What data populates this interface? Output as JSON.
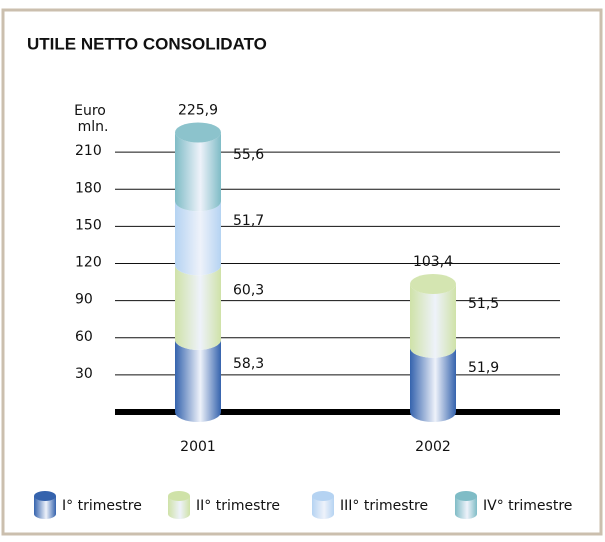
{
  "chart_data": {
    "type": "stacked-cylinder",
    "title": "UTILE NETTO CONSOLIDATO",
    "ylabel": [
      "Euro",
      "mln."
    ],
    "categories": [
      "2001",
      "2002"
    ],
    "series": [
      {
        "name": "I° trimestre",
        "color": "#3563ad",
        "values": [
          58.3,
          51.9
        ],
        "value_labels": [
          "58,3",
          "51,9"
        ]
      },
      {
        "name": "II° trimestre",
        "color": "#cfe2a8",
        "values": [
          60.3,
          51.5
        ],
        "value_labels": [
          "60,3",
          "51,5"
        ]
      },
      {
        "name": "III° trimestre",
        "color": "#b5d3f2",
        "values": [
          51.7,
          null
        ],
        "value_labels": [
          "51,7",
          null
        ]
      },
      {
        "name": "IV° trimestre",
        "color": "#7fbcc6",
        "values": [
          55.6,
          null
        ],
        "value_labels": [
          "55,6",
          null
        ]
      }
    ],
    "totals": {
      "values": [
        225.9,
        103.4
      ],
      "value_labels": [
        "225,9",
        "103,4"
      ]
    },
    "ylim": [
      0,
      240
    ],
    "yticks": [
      30,
      60,
      90,
      120,
      150,
      180,
      210
    ],
    "grid": true
  }
}
